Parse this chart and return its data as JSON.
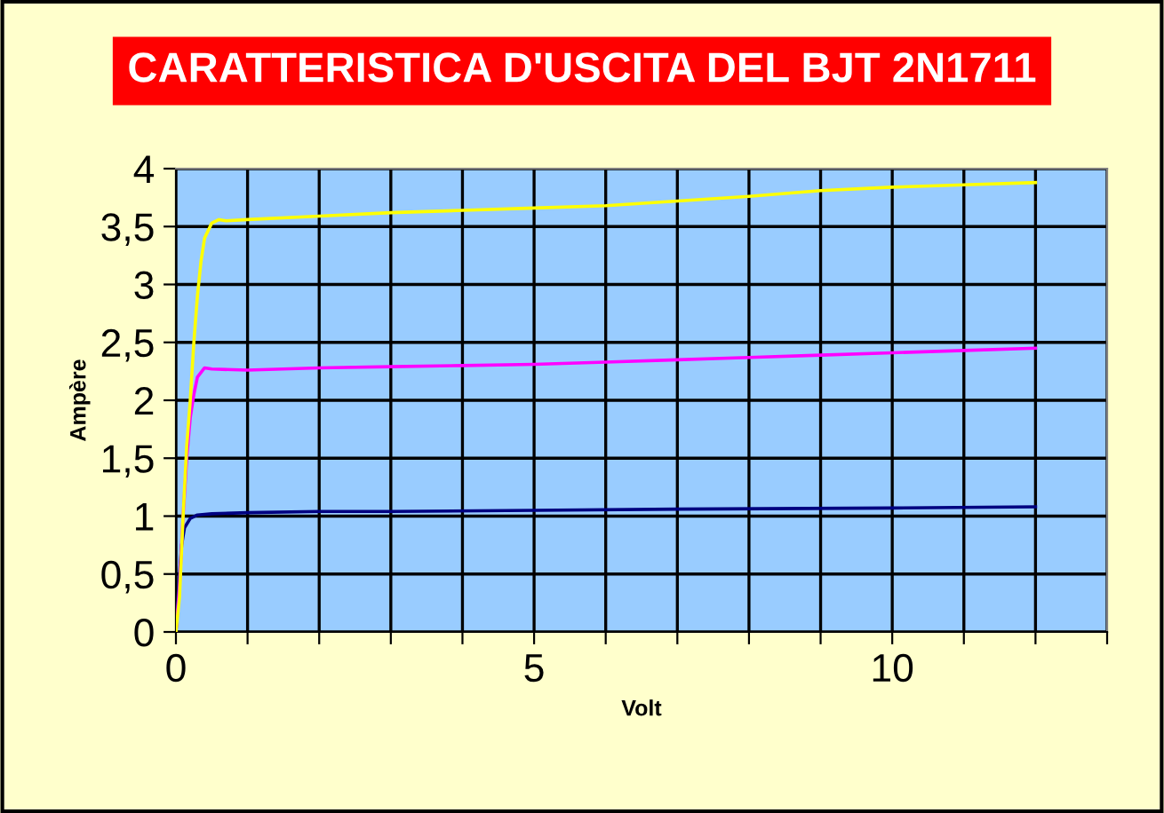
{
  "chart_data": {
    "type": "line",
    "title": "CARATTERISTICA D'USCITA DEL BJT 2N1711",
    "xlabel": "Volt",
    "ylabel": "Ampère",
    "xlim": [
      0,
      13
    ],
    "ylim": [
      0,
      4
    ],
    "xticks": [
      0,
      {
        "value": 1,
        "label": null
      },
      {
        "value": 2,
        "label": null
      },
      {
        "value": 3,
        "label": null
      },
      {
        "value": 4,
        "label": null
      },
      5,
      {
        "value": 6,
        "label": null
      },
      {
        "value": 7,
        "label": null
      },
      {
        "value": 8,
        "label": null
      },
      {
        "value": 9,
        "label": null
      },
      10,
      {
        "value": 11,
        "label": null
      },
      {
        "value": 12,
        "label": null
      },
      {
        "value": 13,
        "label": null
      }
    ],
    "yticks": [
      0,
      {
        "value": 0.5,
        "label": "0,5"
      },
      1,
      {
        "value": 1.5,
        "label": "1,5"
      },
      2,
      {
        "value": 2.5,
        "label": "2,5"
      },
      3,
      {
        "value": 3.5,
        "label": "3,5"
      },
      4
    ],
    "grid": true,
    "marker": "none",
    "line_style": "solid",
    "series": [
      {
        "color": "#ffff00",
        "x": [
          0,
          0.05,
          0.1,
          0.15,
          0.2,
          0.25,
          0.3,
          0.35,
          0.4,
          0.5,
          0.6,
          0.7,
          1,
          2,
          3,
          4,
          5,
          6,
          7,
          8,
          9,
          10,
          11,
          12
        ],
        "values": [
          0,
          0.3,
          1.0,
          1.6,
          2.0,
          2.5,
          2.9,
          3.2,
          3.4,
          3.53,
          3.56,
          3.55,
          3.56,
          3.59,
          3.62,
          3.64,
          3.66,
          3.68,
          3.72,
          3.76,
          3.81,
          3.84,
          3.86,
          3.88
        ]
      },
      {
        "color": "#ff00ff",
        "x": [
          0,
          0.05,
          0.1,
          0.15,
          0.2,
          0.25,
          0.3,
          0.4,
          0.5,
          1,
          2,
          3,
          4,
          5,
          6,
          7,
          8,
          9,
          10,
          11,
          12
        ],
        "values": [
          0,
          0.4,
          1.0,
          1.5,
          1.85,
          2.05,
          2.2,
          2.28,
          2.27,
          2.26,
          2.28,
          2.29,
          2.3,
          2.31,
          2.33,
          2.35,
          2.37,
          2.39,
          2.41,
          2.43,
          2.45
        ]
      },
      {
        "color": "#000080",
        "x": [
          0,
          0.02,
          0.05,
          0.08,
          0.12,
          0.2,
          0.3,
          0.5,
          1,
          2,
          3,
          5,
          7,
          10,
          12
        ],
        "values": [
          0,
          0.2,
          0.5,
          0.75,
          0.9,
          0.98,
          1.01,
          1.02,
          1.03,
          1.04,
          1.04,
          1.05,
          1.06,
          1.07,
          1.08
        ]
      }
    ]
  }
}
